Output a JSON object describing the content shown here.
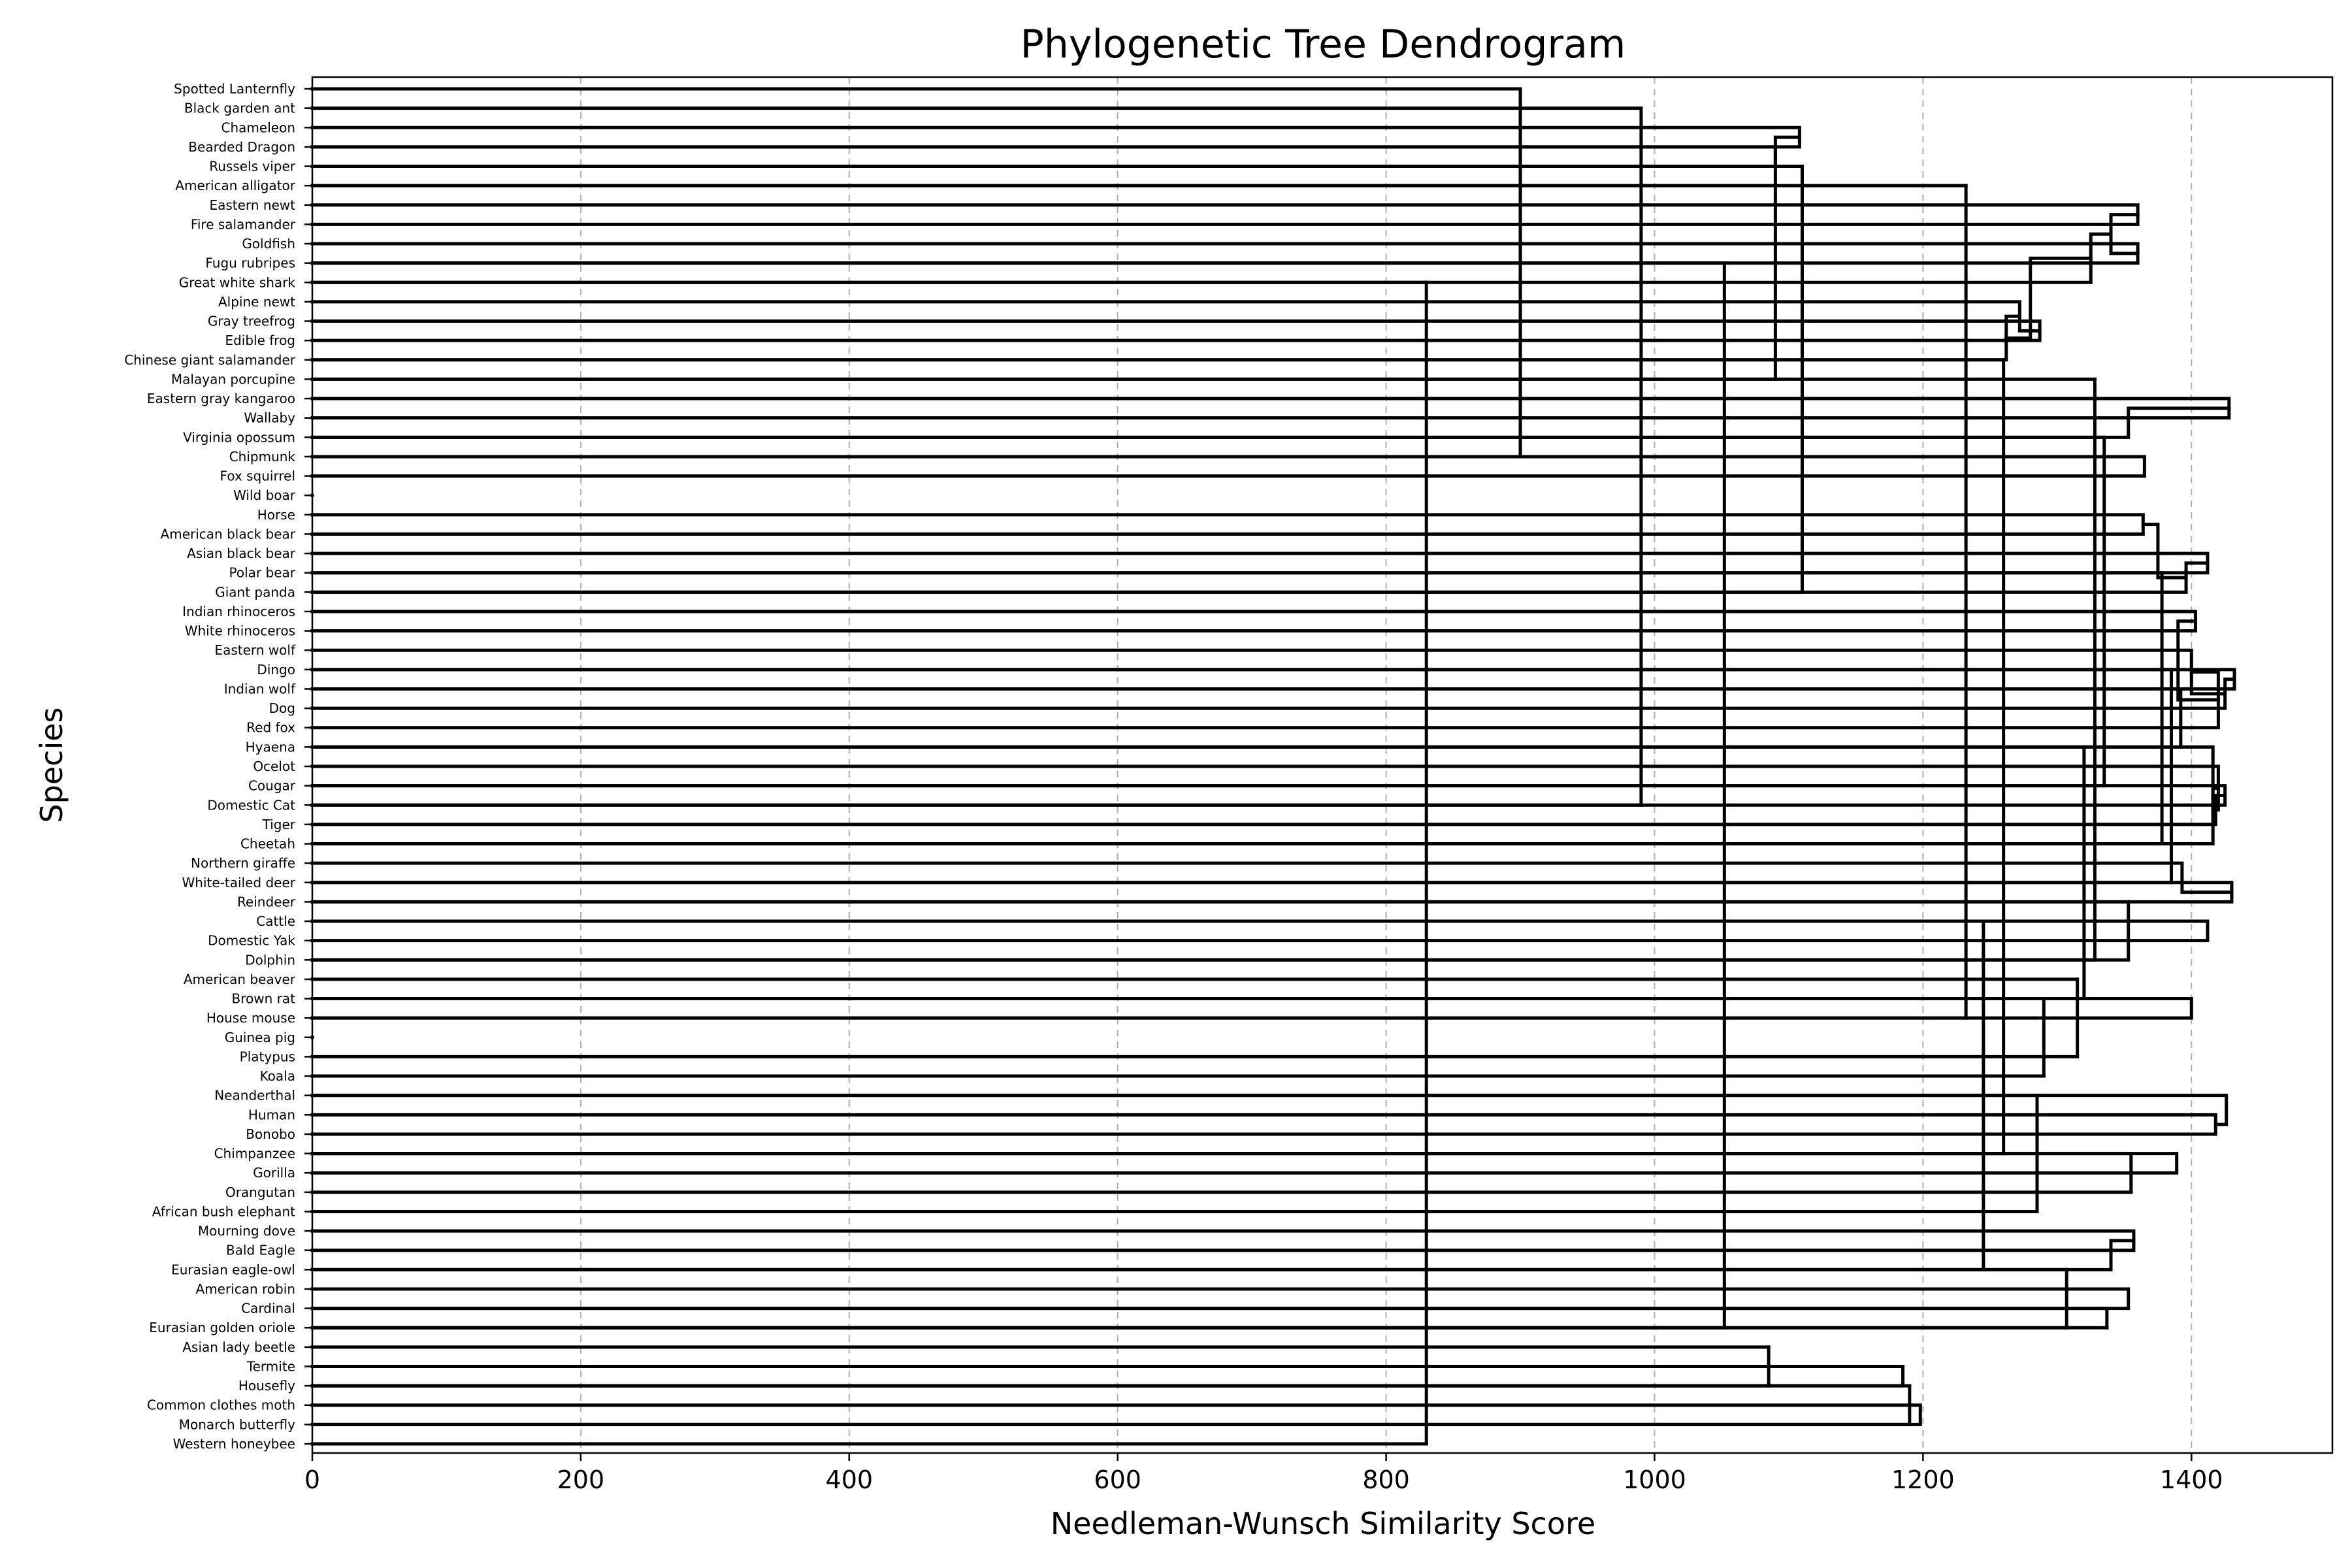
{
  "chart_data": {
    "type": "dendrogram",
    "title": "Phylogenetic Tree Dendrogram",
    "xlabel": "Needleman-Wunsch Similarity Score",
    "ylabel": "Species",
    "xlim": [
      0,
      1505
    ],
    "x_ticks": [
      0,
      200,
      400,
      600,
      800,
      1000,
      1200,
      1400
    ],
    "grid": "x-dashed",
    "leaves": [
      "Spotted Lanternfly",
      "Black garden ant",
      "Chameleon",
      "Bearded Dragon",
      "Russels viper",
      "American alligator",
      "Eastern newt",
      "Fire salamander",
      "Goldfish",
      "Fugu rubripes",
      "Great white shark",
      "Alpine newt",
      "Gray treefrog",
      "Edible frog",
      "Chinese giant salamander",
      "Malayan porcupine",
      "Eastern gray kangaroo",
      "Wallaby",
      "Virginia opossum",
      "Chipmunk",
      "Fox squirrel",
      "Wild boar",
      "Horse",
      "American black bear",
      "Asian black bear",
      "Polar bear",
      "Giant panda",
      "Indian rhinoceros",
      "White rhinoceros",
      "Eastern wolf",
      "Dingo",
      "Indian wolf",
      "Dog",
      "Red fox",
      "Hyaena",
      "Ocelot",
      "Cougar",
      "Domestic Cat",
      "Tiger",
      "Cheetah",
      "Northern giraffe",
      "White-tailed deer",
      "Reindeer",
      "Cattle",
      "Domestic Yak",
      "Dolphin",
      "American beaver",
      "Brown rat",
      "House mouse",
      "Guinea pig",
      "Platypus",
      "Koala",
      "Neanderthal",
      "Human",
      "Bonobo",
      "Chimpanzee",
      "Gorilla",
      "Orangutan",
      "African bush elephant",
      "Mourning dove",
      "Bald Eagle",
      "Eurasian eagle-owl",
      "American robin",
      "Cardinal",
      "Eurasian golden oriole",
      "Asian lady beetle",
      "Termite",
      "Housefly",
      "Common clothes moth",
      "Monarch butterfly",
      "Western honeybee"
    ],
    "merges": [
      {
        "a": [
          "Chameleon"
        ],
        "b": [
          "Bearded Dragon"
        ],
        "score": 1108
      },
      {
        "a": [
          "Chameleon",
          "Bearded Dragon"
        ],
        "b": [
          "Russels viper"
        ],
        "score": 1090
      },
      {
        "a": [
          "Eastern newt"
        ],
        "b": [
          "Fire salamander"
        ],
        "score": 1360
      },
      {
        "a": [
          "Goldfish"
        ],
        "b": [
          "Fugu rubripes"
        ],
        "score": 1360
      },
      {
        "a": [
          "Eastern newt",
          "Fire salamander"
        ],
        "b": [
          "Goldfish",
          "Fugu rubripes"
        ],
        "score": 1340
      },
      {
        "a": [
          "Eastern newt",
          "Fire salamander",
          "Goldfish",
          "Fugu rubripes"
        ],
        "b": [
          "Great white shark"
        ],
        "score": 1325
      },
      {
        "a": [
          "Gray treefrog"
        ],
        "b": [
          "Edible frog"
        ],
        "score": 1287
      },
      {
        "a": [
          "Alpine newt"
        ],
        "b": [
          "Gray treefrog",
          "Edible frog"
        ],
        "score": 1272
      },
      {
        "a": [
          "Alpine newt",
          "Gray treefrog",
          "Edible frog"
        ],
        "b": [
          "Chinese giant salamander"
        ],
        "score": 1262
      },
      {
        "a": [
          "Eastern newt",
          "Fire salamander",
          "Goldfish",
          "Fugu rubripes",
          "Great white shark"
        ],
        "b": [
          "Alpine newt",
          "Gray treefrog",
          "Edible frog",
          "Chinese giant salamander"
        ],
        "score": 1280
      },
      {
        "a": [
          "Eastern gray kangaroo"
        ],
        "b": [
          "Wallaby"
        ],
        "score": 1428
      },
      {
        "a": [
          "Virginia opossum"
        ],
        "b": [
          "Eastern gray kangaroo",
          "Wallaby"
        ],
        "score": 1353
      },
      {
        "a": [
          "Chipmunk"
        ],
        "b": [
          "Fox squirrel"
        ],
        "score": 1365
      },
      {
        "a": [
          "Horse"
        ],
        "b": [
          "American black bear"
        ],
        "score": 1364
      },
      {
        "a": [
          "Asian black bear"
        ],
        "b": [
          "Polar bear"
        ],
        "score": 1412
      },
      {
        "a": [
          "Asian black bear",
          "Polar bear"
        ],
        "b": [
          "Giant panda"
        ],
        "score": 1396
      },
      {
        "a": [
          "Horse",
          "American black bear"
        ],
        "b": [
          "Asian black bear",
          "Polar bear",
          "Giant panda"
        ],
        "score": 1375
      },
      {
        "a": [
          "Indian rhinoceros"
        ],
        "b": [
          "White rhinoceros"
        ],
        "score": 1403
      },
      {
        "a": [
          "Dingo"
        ],
        "b": [
          "Indian wolf"
        ],
        "score": 1432
      },
      {
        "a": [
          "Dingo",
          "Indian wolf"
        ],
        "b": [
          "Dog"
        ],
        "score": 1425
      },
      {
        "a": [
          "Eastern wolf"
        ],
        "b": [
          "Dingo",
          "Indian wolf",
          "Dog"
        ],
        "score": 1400
      },
      {
        "a": [
          "Eastern wolf",
          "Dingo",
          "Indian wolf",
          "Dog"
        ],
        "b": [
          "Red fox"
        ],
        "score": 1420
      },
      {
        "a": [
          "Indian rhinoceros",
          "White rhinoceros"
        ],
        "b": [
          "Eastern wolf",
          "Dingo",
          "Indian wolf",
          "Dog",
          "Red fox"
        ],
        "score": 1390
      },
      {
        "a": [
          "Cougar"
        ],
        "b": [
          "Domestic Cat"
        ],
        "score": 1425
      },
      {
        "a": [
          "Cougar",
          "Domestic Cat"
        ],
        "b": [
          "Tiger"
        ],
        "score": 1418
      },
      {
        "a": [
          "Ocelot"
        ],
        "b": [
          "Cougar",
          "Domestic Cat",
          "Tiger"
        ],
        "score": 1420
      },
      {
        "a": [
          "Ocelot",
          "Cougar",
          "Domestic Cat",
          "Tiger"
        ],
        "b": [
          "Cheetah"
        ],
        "score": 1416
      },
      {
        "a": [
          "Hyaena"
        ],
        "b": [
          "Ocelot",
          "Cougar",
          "Domestic Cat",
          "Tiger",
          "Cheetah"
        ],
        "score": 1416
      },
      {
        "a": [
          "White-tailed deer"
        ],
        "b": [
          "Reindeer"
        ],
        "score": 1430
      },
      {
        "a": [
          "Northern giraffe"
        ],
        "b": [
          "White-tailed deer",
          "Reindeer"
        ],
        "score": 1393
      },
      {
        "a": [
          "Cattle"
        ],
        "b": [
          "Domestic Yak"
        ],
        "score": 1412
      },
      {
        "a": [
          "Brown rat"
        ],
        "b": [
          "House mouse"
        ],
        "score": 1400
      },
      {
        "a": [
          "Human"
        ],
        "b": [
          "Bonobo"
        ],
        "score": 1418
      },
      {
        "a": [
          "Neanderthal"
        ],
        "b": [
          "Human",
          "Bonobo"
        ],
        "score": 1426
      },
      {
        "a": [
          "Chimpanzee"
        ],
        "b": [
          "Gorilla"
        ],
        "score": 1389
      },
      {
        "a": [
          "Mourning dove"
        ],
        "b": [
          "Bald Eagle"
        ],
        "score": 1357
      },
      {
        "a": [
          "Mourning dove",
          "Bald Eagle"
        ],
        "b": [
          "Eurasian eagle-owl"
        ],
        "score": 1340
      },
      {
        "a": [
          "American robin"
        ],
        "b": [
          "Cardinal"
        ],
        "score": 1353
      },
      {
        "a": [
          "Termite"
        ],
        "b": [
          "Housefly"
        ],
        "score": 1185
      },
      {
        "a": [
          "Common clothes moth"
        ],
        "b": [
          "Monarch butterfly"
        ],
        "score": 1198
      }
    ]
  }
}
